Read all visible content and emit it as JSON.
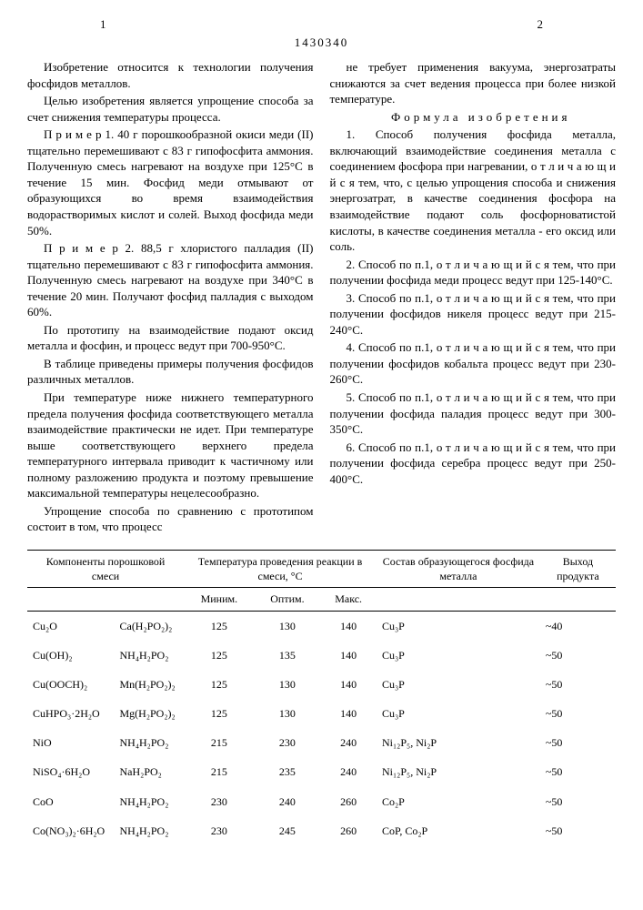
{
  "header": {
    "page_left": "1",
    "page_right": "2",
    "patent_number": "1430340"
  },
  "col_left": {
    "p1": "Изобретение относится к технологии получения фосфидов металлов.",
    "p2": "Целью изобретения является упрощение способа за счет снижения температуры процесса.",
    "p3": "П р и м е р 1. 40 г порошкообразной окиси меди (II) тщательно перемешивают с 83 г гипофосфита аммония. Полученную смесь нагревают на воздухе при 125°C в течение 15 мин. Фосфид меди отмывают от образующихся во время взаимодействия водорастворимых кислот и солей. Выход фосфида меди 50%.",
    "p4": "П р и м е р 2. 88,5 г хлористого палладия (II) тщательно перемешивают с 83 г гипофосфита аммония. Полученную смесь нагревают на воздухе при 340°C в течение 20 мин. Получают фосфид палладия с выходом 60%.",
    "p5": "По прототипу на взаимодействие подают оксид металла и фосфин, и процесс ведут при 700-950°C.",
    "p6": "В таблице приведены примеры получения фосфидов различных металлов.",
    "p7": "При температуре ниже нижнего температурного предела получения фосфида соответствующего металла взаимодействие практически не идет. При температуре выше соответствующего верхнего предела температурного интервала приводит к частичному или полному разложению продукта и поэтому превышение максимальной температуры нецелесообразно.",
    "p8": "Упрощение способа по сравнению с прототипом состоит в том, что процесс"
  },
  "col_right": {
    "p1": "не требует применения вакуума, энергозатраты снижаются за счет ведения процесса при более низкой температуре.",
    "formula_title": "Формула изобретения",
    "c1": "1. Способ получения фосфида металла, включающий взаимодействие соединения металла с соединением фосфора при нагревании, о т л и ч а ю щ и й с я  тем, что, с целью упрощения способа и снижения энергозатрат, в качестве соединения фосфора на взаимодействие подают соль фосфорноватистой кислоты, в качестве соединения металла - его оксид или соль.",
    "c2": "2. Способ по п.1, о т л и ч а ю щ и й с я  тем, что при получении фосфида меди процесс ведут при 125-140°C.",
    "c3": "3. Способ по п.1, о т л и ч а ю щ и й с я  тем, что при получении фосфидов никеля процесс ведут при 215-240°C.",
    "c4": "4. Способ по п.1, о т л и ч а ю щ и й с я  тем, что при получении фосфидов кобальта процесс ведут при 230-260°C.",
    "c5": "5. Способ по п.1, о т л и ч а ю щ и й с я  тем, что при получении фосфида паладия процесс ведут при 300-350°C.",
    "c6": "6. Способ по п.1, о т л и ч а ю щ и й с я  тем, что при получении фосфида серебра процесс ведут при 250-400°C."
  },
  "line_markers": [
    "5",
    "10",
    "15",
    "20",
    "25",
    "30",
    "35"
  ],
  "table": {
    "headers": {
      "h1": "Компоненты порошковой смеси",
      "h2": "Температура проведения реакции в смеси, °C",
      "h3": "Состав образующегося фосфида металла",
      "h4": "Выход продукта",
      "sub1": "Миним.",
      "sub2": "Оптим.",
      "sub3": "Макс."
    },
    "rows": [
      {
        "c1": "Cu₂O",
        "c2": "Ca(H₂PO₂)₂",
        "t1": "125",
        "t2": "130",
        "t3": "140",
        "prod": "Cu₃P",
        "yield": "~40"
      },
      {
        "c1": "Cu(OH)₂",
        "c2": "NH₄H₂PO₂",
        "t1": "125",
        "t2": "135",
        "t3": "140",
        "prod": "Cu₃P",
        "yield": "~50"
      },
      {
        "c1": "Cu(OOCH)₂",
        "c2": "Mn(H₂PO₂)₂",
        "t1": "125",
        "t2": "130",
        "t3": "140",
        "prod": "Cu₃P",
        "yield": "~50"
      },
      {
        "c1": "CuHPO₃·2H₂O",
        "c2": "Mg(H₂PO₂)₂",
        "t1": "125",
        "t2": "130",
        "t3": "140",
        "prod": "Cu₃P",
        "yield": "~50"
      },
      {
        "c1": "NiO",
        "c2": "NH₄H₂PO₂",
        "t1": "215",
        "t2": "230",
        "t3": "240",
        "prod": "Ni₁₂P₅, Ni₂P",
        "yield": "~50"
      },
      {
        "c1": "NiSO₄·6H₂O",
        "c2": "NaH₂PO₂",
        "t1": "215",
        "t2": "235",
        "t3": "240",
        "prod": "Ni₁₂P₅, Ni₂P",
        "yield": "~50"
      },
      {
        "c1": "CoO",
        "c2": "NH₄H₂PO₂",
        "t1": "230",
        "t2": "240",
        "t3": "260",
        "prod": "Co₂P",
        "yield": "~50"
      },
      {
        "c1": "Co(NO₃)₂·6H₂O",
        "c2": "NH₄H₂PO₂",
        "t1": "230",
        "t2": "245",
        "t3": "260",
        "prod": "CoP, Co₂P",
        "yield": "~50"
      }
    ]
  }
}
